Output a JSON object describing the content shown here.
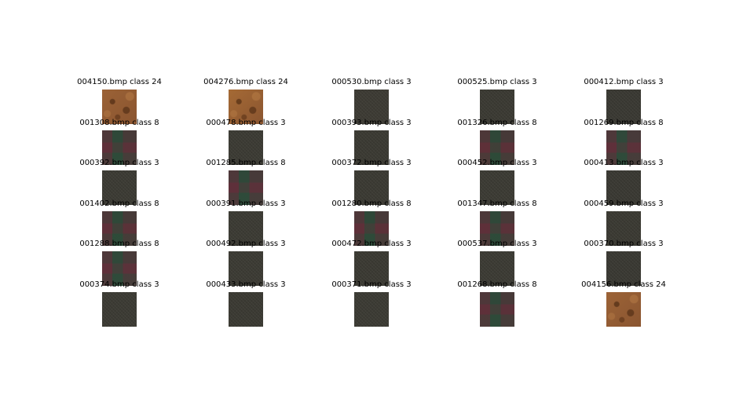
{
  "grid": {
    "columns": 5,
    "rows": 6,
    "cells": [
      {
        "title": "004150.bmp class 24",
        "texture": "brown-icon",
        "color": "#9b6236"
      },
      {
        "title": "004276.bmp class 24",
        "texture": "brown-icon",
        "color": "#a56a35"
      },
      {
        "title": "000530.bmp class 3",
        "texture": "dark-icon",
        "color": "#3d3b34"
      },
      {
        "title": "000525.bmp class 3",
        "texture": "dark-icon",
        "color": "#3b3a33"
      },
      {
        "title": "000412.bmp class 3",
        "texture": "dark-icon",
        "color": "#3a3933"
      },
      {
        "title": "001308.bmp class 8",
        "texture": "plaid-icon",
        "color": "#3f3a36"
      },
      {
        "title": "000478.bmp class 3",
        "texture": "dark-icon",
        "color": "#3c3b34"
      },
      {
        "title": "000393.bmp class 3",
        "texture": "dark-icon",
        "color": "#3b3a33"
      },
      {
        "title": "001326.bmp class 8",
        "texture": "plaid-icon",
        "color": "#3e3934"
      },
      {
        "title": "001269.bmp class 8",
        "texture": "plaid-icon",
        "color": "#403a38"
      },
      {
        "title": "000392.bmp class 3",
        "texture": "dark-icon",
        "color": "#3c3b34"
      },
      {
        "title": "001285.bmp class 8",
        "texture": "plaid-icon",
        "color": "#3f3a37"
      },
      {
        "title": "000372.bmp class 3",
        "texture": "dark-icon",
        "color": "#3b3a33"
      },
      {
        "title": "000452.bmp class 3",
        "texture": "dark-icon",
        "color": "#3c3b34"
      },
      {
        "title": "000413.bmp class 3",
        "texture": "dark-icon",
        "color": "#3a3933"
      },
      {
        "title": "001402.bmp class 8",
        "texture": "plaid-icon",
        "color": "#3e3a35"
      },
      {
        "title": "000391.bmp class 3",
        "texture": "dark-icon",
        "color": "#3c3b34"
      },
      {
        "title": "001280.bmp class 8",
        "texture": "plaid-icon",
        "color": "#3f3935"
      },
      {
        "title": "001347.bmp class 8",
        "texture": "plaid-icon",
        "color": "#3e3a36"
      },
      {
        "title": "000459.bmp class 3",
        "texture": "dark-icon",
        "color": "#3b3a33"
      },
      {
        "title": "001288.bmp class 8",
        "texture": "plaid-icon",
        "color": "#403a37"
      },
      {
        "title": "000492.bmp class 3",
        "texture": "dark-icon",
        "color": "#3c3b34"
      },
      {
        "title": "000472.bmp class 3",
        "texture": "dark-icon",
        "color": "#3b3a33"
      },
      {
        "title": "000537.bmp class 3",
        "texture": "dark-icon",
        "color": "#3c3b34"
      },
      {
        "title": "000370.bmp class 3",
        "texture": "dark-icon",
        "color": "#3a3933"
      },
      {
        "title": "000374.bmp class 3",
        "texture": "dark-icon",
        "color": "#3c3b34"
      },
      {
        "title": "000433.bmp class 3",
        "texture": "dark-icon",
        "color": "#3b3a33"
      },
      {
        "title": "000371.bmp class 3",
        "texture": "dark-icon",
        "color": "#3c3b34"
      },
      {
        "title": "001268.bmp class 8",
        "texture": "plaid-icon",
        "color": "#3f3936"
      },
      {
        "title": "004156.bmp class 24",
        "texture": "brown-icon",
        "color": "#9c6337"
      }
    ]
  }
}
